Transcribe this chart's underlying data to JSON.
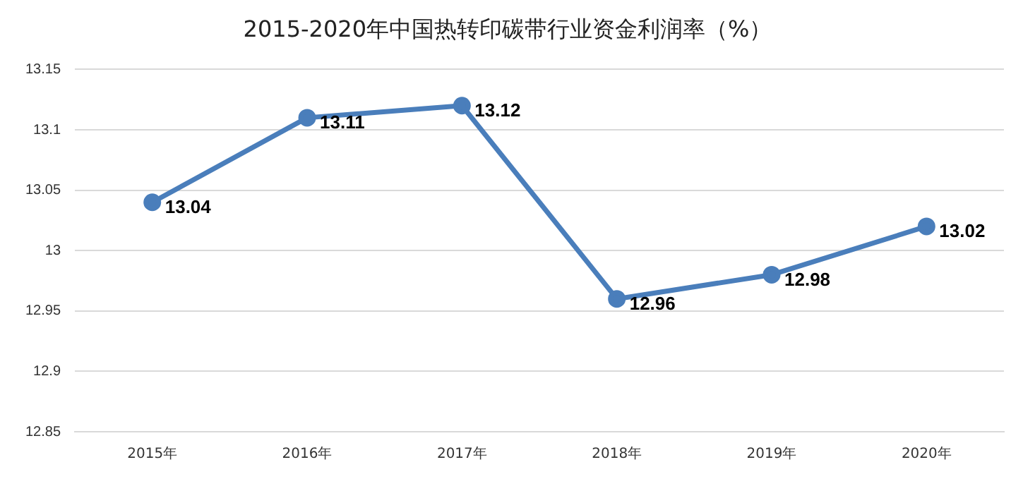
{
  "chart_data": {
    "type": "line",
    "title": "2015-2020年中国热转印碳带行业资金利润率（%）",
    "categories": [
      "2015年",
      "2016年",
      "2017年",
      "2018年",
      "2019年",
      "2020年"
    ],
    "series": [
      {
        "color": "#4a7ebb",
        "values": [
          13.04,
          13.11,
          13.12,
          12.96,
          12.98,
          13.02
        ]
      }
    ],
    "ylim": [
      12.85,
      13.15
    ],
    "yticks": [
      12.85,
      12.9,
      12.95,
      13,
      13.05,
      13.1,
      13.15
    ],
    "grid": "y",
    "legend": false,
    "marker": "circle",
    "line_style": "solid",
    "data_labels": true
  }
}
